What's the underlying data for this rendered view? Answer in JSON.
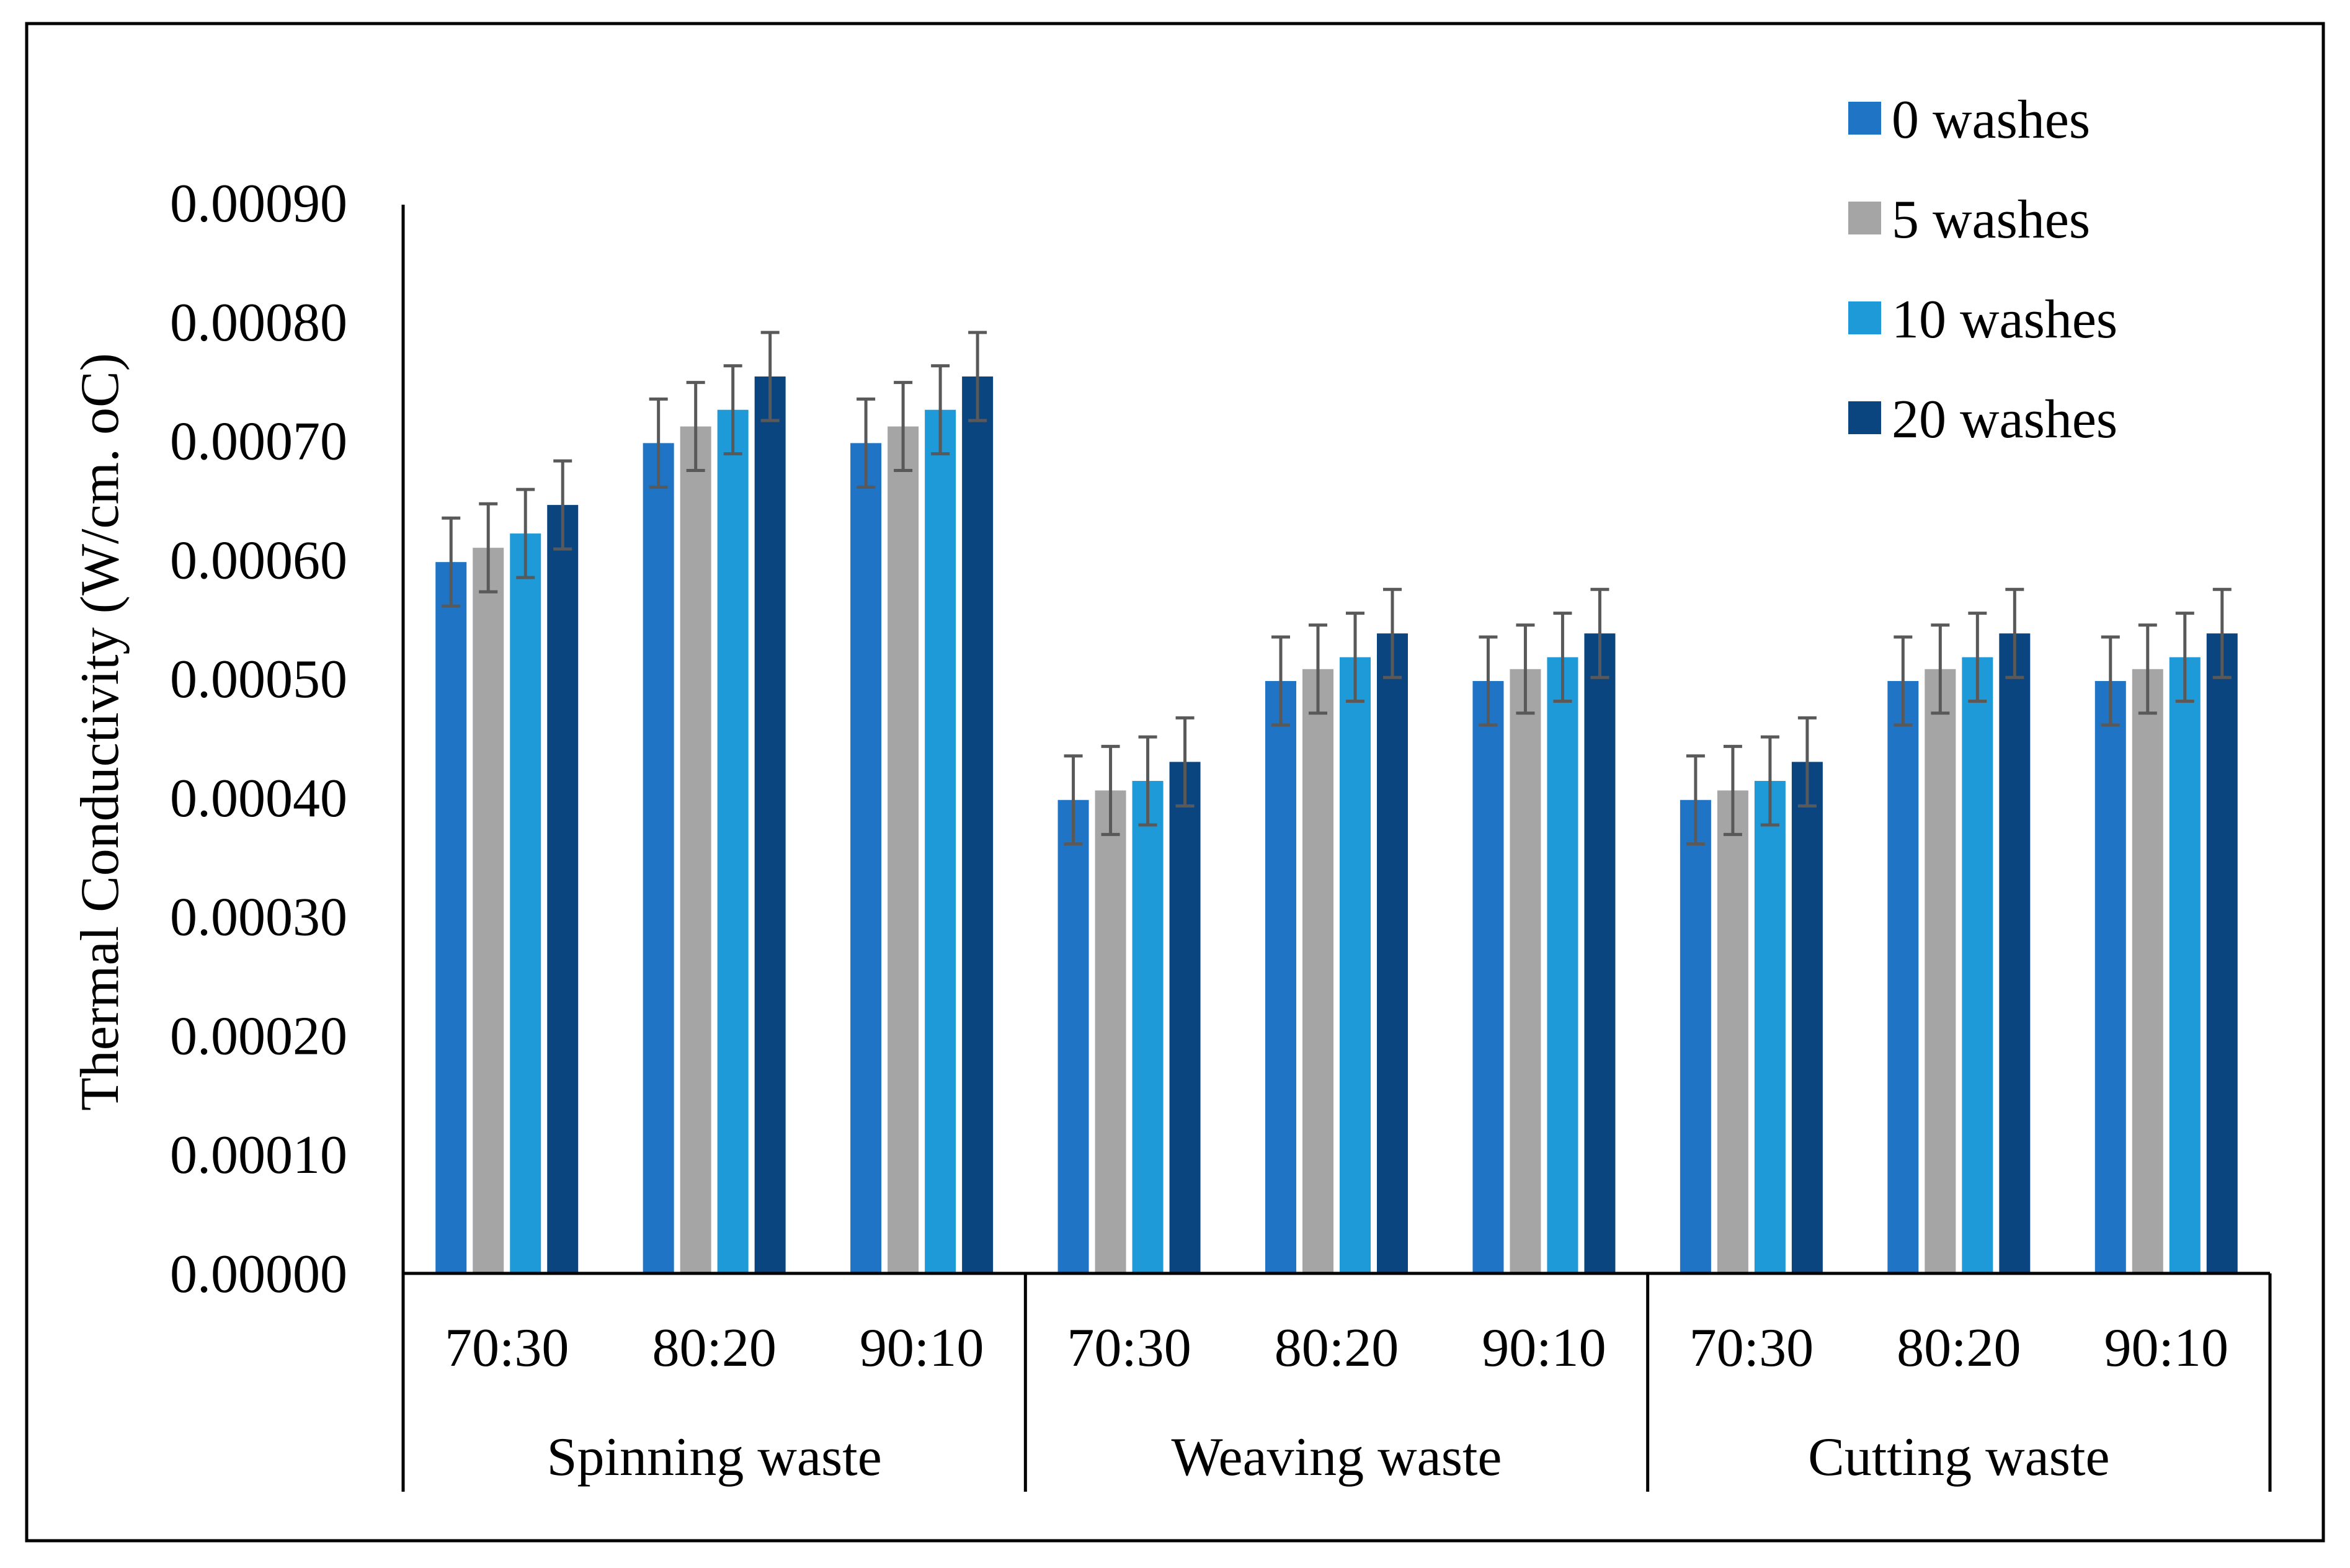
{
  "chart_data": {
    "type": "bar",
    "title": "",
    "xlabel": "",
    "ylabel": "Thermal Conductivity (W/cm. oC)",
    "ylim": [
      0,
      0.0009
    ],
    "yticks": [
      "0.00000",
      "0.00010",
      "0.00020",
      "0.00030",
      "0.00040",
      "0.00050",
      "0.00060",
      "0.00070",
      "0.00080",
      "0.00090"
    ],
    "ytick_values": [
      0,
      0.0001,
      0.0002,
      0.0003,
      0.0004,
      0.0005,
      0.0006,
      0.0007,
      0.0008,
      0.0009
    ],
    "groups": [
      "Spinning waste",
      "Weaving waste",
      "Cutting waste"
    ],
    "categories": [
      "70:30",
      "80:20",
      "90:10",
      "70:30",
      "80:20",
      "90:10",
      "70:30",
      "80:20",
      "90:10"
    ],
    "series": [
      {
        "name": "0 washes",
        "color": "#1f74c6",
        "values": [
          0.000598,
          0.000698,
          0.000698,
          0.000398,
          0.000498,
          0.000498,
          0.000398,
          0.000498,
          0.000498
        ]
      },
      {
        "name": "5 washes",
        "color": "#a5a5a5",
        "values": [
          0.00061,
          0.000712,
          0.000712,
          0.000406,
          0.000508,
          0.000508,
          0.000406,
          0.000508,
          0.000508
        ]
      },
      {
        "name": "10 washes",
        "color": "#1e9ad8",
        "values": [
          0.000622,
          0.000726,
          0.000726,
          0.000414,
          0.000518,
          0.000518,
          0.000414,
          0.000518,
          0.000518
        ]
      },
      {
        "name": "20 washes",
        "color": "#0b4580",
        "values": [
          0.000646,
          0.000754,
          0.000754,
          0.00043,
          0.000538,
          0.000538,
          0.00043,
          0.000538,
          0.000538
        ]
      }
    ],
    "error": 3.7e-05,
    "legend_position": "top-right",
    "grid": false
  }
}
